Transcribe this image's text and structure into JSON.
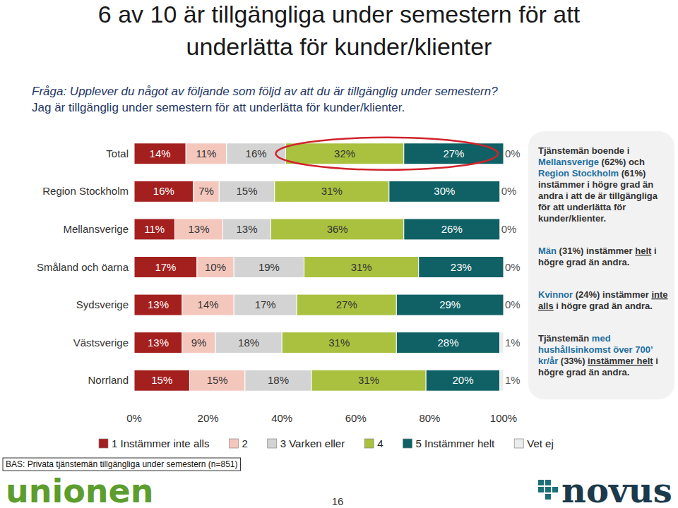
{
  "chart_data": {
    "type": "bar",
    "orientation": "horizontal",
    "stacked": true,
    "data_labels": true,
    "title": "6 av 10 är tillgängliga under semestern för att underlätta för kunder/klienter",
    "subtitle": [
      "Fråga: Upplever du något av följande som följd av att du är tillgänglig under semestern?",
      "Jag är tillgänglig under semestern för att underlätta för kunder/klienter."
    ],
    "categories": [
      "Total",
      "Region Stockholm",
      "Mellansverige",
      "Småland och öarna",
      "Sydsverige",
      "Västsverige",
      "Norrland"
    ],
    "series": [
      {
        "name": "1 Instämmer inte alls",
        "color": "#a3201f",
        "values": [
          14,
          16,
          11,
          17,
          13,
          13,
          15
        ],
        "value_labels": [
          "14%",
          "16%",
          "11%",
          "17%",
          "13%",
          "13%",
          "15%"
        ]
      },
      {
        "name": "2",
        "color": "#f4c7bd",
        "values": [
          11,
          7,
          13,
          10,
          14,
          9,
          15
        ],
        "value_labels": [
          "11%",
          "7%",
          "13%",
          "10%",
          "14%",
          "9%",
          "15%"
        ]
      },
      {
        "name": "3 Varken eller",
        "color": "#d3d3d3",
        "values": [
          16,
          15,
          13,
          19,
          17,
          18,
          18
        ],
        "value_labels": [
          "16%",
          "15%",
          "13%",
          "19%",
          "17%",
          "18%",
          "18%"
        ]
      },
      {
        "name": "4",
        "color": "#a9c13f",
        "values": [
          32,
          31,
          36,
          31,
          27,
          31,
          31
        ],
        "value_labels": [
          "32%",
          "31%",
          "36%",
          "31%",
          "27%",
          "31%",
          "31%"
        ]
      },
      {
        "name": "5 Instämmer helt",
        "color": "#0f6165",
        "values": [
          27,
          30,
          26,
          23,
          29,
          28,
          20
        ],
        "value_labels": [
          "27%",
          "30%",
          "26%",
          "23%",
          "29%",
          "28%",
          "20%"
        ]
      },
      {
        "name": "Vet ej",
        "color": "#ececec",
        "values": [
          0,
          0,
          0,
          0,
          0,
          1,
          1
        ],
        "value_labels": [
          "0%",
          "0%",
          "0%",
          "0%",
          "0%",
          "1%",
          "1%"
        ]
      }
    ],
    "xlim": [
      0,
      100
    ],
    "xticks": [
      {
        "value": 0,
        "label": "0%"
      },
      {
        "value": 20,
        "label": "20%"
      },
      {
        "value": 40,
        "label": "40%"
      },
      {
        "value": 60,
        "label": "60%"
      },
      {
        "value": 80,
        "label": "80%"
      },
      {
        "value": 100,
        "label": "100%"
      }
    ],
    "legend": "bottom",
    "annotations": [
      [
        {
          "text": "Tjänstemän boende i "
        },
        {
          "text": "Mellansverige",
          "style": "accent"
        },
        {
          "text": " (62%) och "
        },
        {
          "text": "Region Stockholm",
          "style": "accent"
        },
        {
          "text": " (61%) instämmer i högre grad än andra i att de är tillgängliga för att underlätta för kunder/klienter."
        }
      ],
      [
        {
          "text": "Män",
          "style": "accent"
        },
        {
          "text": " (31%) instämmer "
        },
        {
          "text": "helt",
          "style": "underline"
        },
        {
          "text": " i högre grad än andra."
        }
      ],
      [
        {
          "text": "Kvinnor",
          "style": "accent"
        },
        {
          "text": " (24%) instämmer "
        },
        {
          "text": "inte alls",
          "style": "underline"
        },
        {
          "text": " i högre grad än andra."
        }
      ],
      [
        {
          "text": "Tjänstemän "
        },
        {
          "text": "med hushållsinkomst över 700’ kr/år",
          "style": "accent"
        },
        {
          "text": " (33%) "
        },
        {
          "text": "instämmer helt",
          "style": "underline"
        },
        {
          "text": " i högre grad än andra."
        }
      ]
    ],
    "footnote": "BAS: Privata tjänstemän tillgängliga under semestern (n=851)",
    "page_number": "16",
    "logos": [
      "unionen",
      "novus"
    ]
  }
}
